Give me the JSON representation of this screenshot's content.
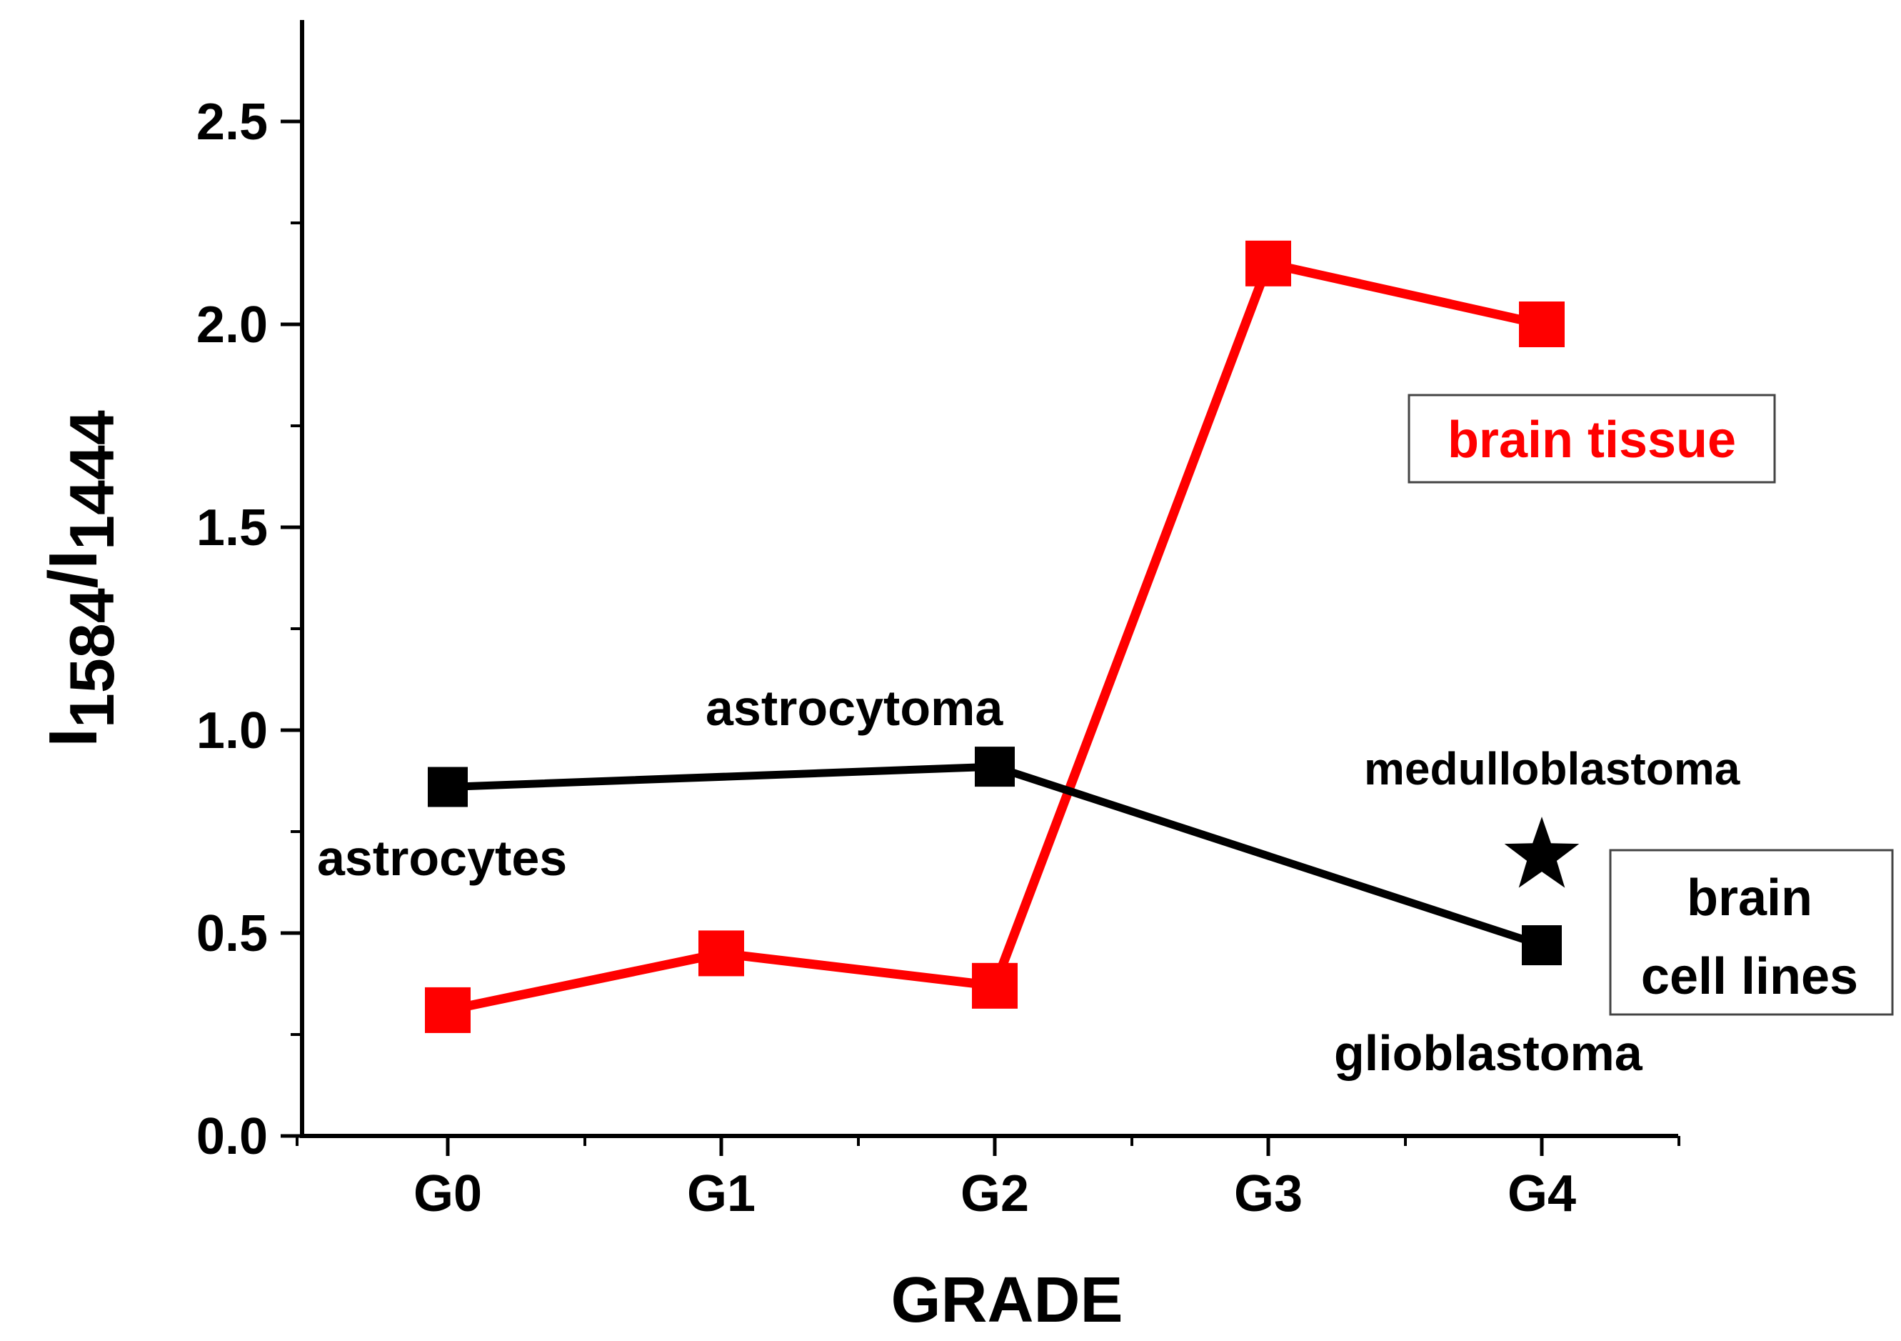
{
  "chart_data": {
    "type": "line",
    "categories": [
      "G0",
      "G1",
      "G2",
      "G3",
      "G4"
    ],
    "xlabel": "GRADE",
    "ylabel": {
      "main": "I",
      "sub1": "1584",
      "sep": "/I",
      "sub2": "1444"
    },
    "ylim": [
      0,
      2.75
    ],
    "yticks": [
      "0.0",
      "0.5",
      "1.0",
      "1.5",
      "2.0",
      "2.5"
    ],
    "grid": false,
    "series": [
      {
        "name": "brain tissue",
        "color": "#ff0000",
        "marker": "square",
        "points": [
          {
            "x": "G0",
            "y": 0.31
          },
          {
            "x": "G1",
            "y": 0.45
          },
          {
            "x": "G2",
            "y": 0.37
          },
          {
            "x": "G3",
            "y": 2.15
          },
          {
            "x": "G4",
            "y": 2.0
          }
        ]
      },
      {
        "name": "brain cell lines",
        "color": "#000000",
        "marker": "square",
        "points": [
          {
            "x": "G0",
            "y": 0.86
          },
          {
            "x": "G2",
            "y": 0.91
          },
          {
            "x": "G4",
            "y": 0.47
          }
        ]
      }
    ],
    "extra_points": [
      {
        "name": "medulloblastoma",
        "x": "G4",
        "y": 0.69,
        "marker": "star",
        "color": "#000000"
      }
    ],
    "annotations": [
      "astrocytes",
      "astrocytoma",
      "medulloblastoma",
      "glioblastoma"
    ],
    "legend": [
      {
        "lines": [
          "brain tissue"
        ],
        "color": "#ff0000"
      },
      {
        "lines": [
          "brain",
          "cell lines"
        ],
        "color": "#000000"
      }
    ]
  }
}
